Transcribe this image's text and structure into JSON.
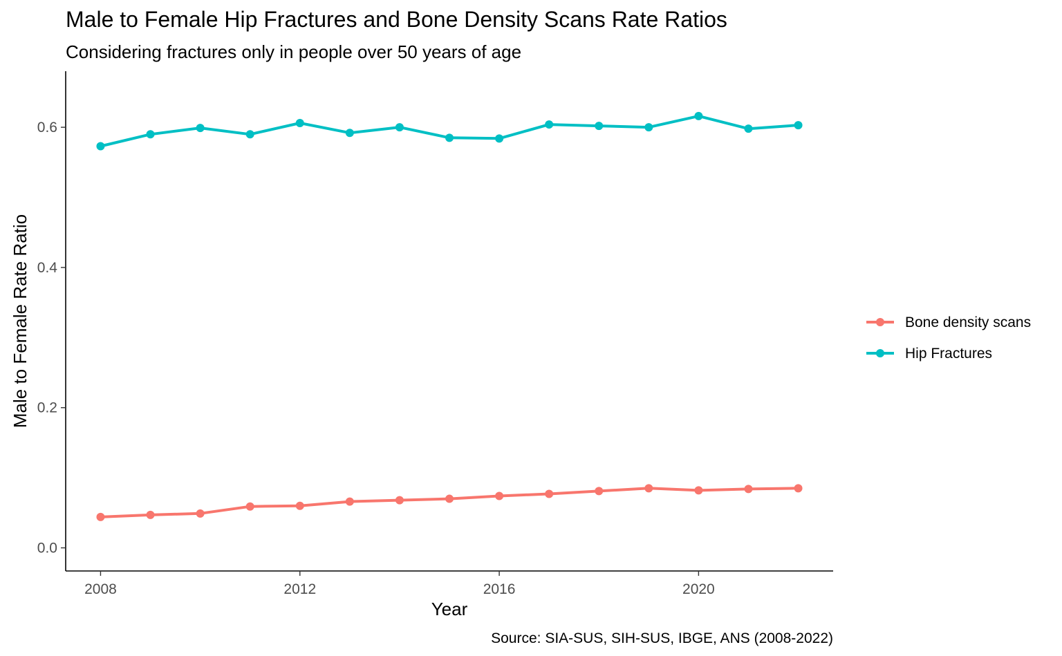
{
  "chart_data": {
    "type": "line",
    "title": "Male to Female Hip Fractures and Bone Density Scans Rate Ratios",
    "subtitle": "Considering fractures only in people over 50 years of age",
    "xlabel": "Year",
    "ylabel": "Male to Female Rate Ratio",
    "caption": "Source: SIA-SUS, SIH-SUS, IBGE, ANS (2008-2022)",
    "xlim": [
      2007.3,
      2022.7
    ],
    "ylim": [
      -0.033,
      0.68
    ],
    "x_ticks": [
      2008,
      2012,
      2016,
      2020
    ],
    "x_tick_labels": [
      "2008",
      "2012",
      "2016",
      "2020"
    ],
    "y_ticks": [
      0.0,
      0.2,
      0.4,
      0.6
    ],
    "y_tick_labels": [
      "0.0",
      "0.2",
      "0.4",
      "0.6"
    ],
    "grid": false,
    "legend_position": "right",
    "x": [
      2008,
      2009,
      2010,
      2011,
      2012,
      2013,
      2014,
      2015,
      2016,
      2017,
      2018,
      2019,
      2020,
      2021,
      2022
    ],
    "series": [
      {
        "name": "Bone density scans",
        "color": "#F8766D",
        "values": [
          0.044,
          0.047,
          0.049,
          0.059,
          0.06,
          0.066,
          0.068,
          0.07,
          0.074,
          0.077,
          0.081,
          0.085,
          0.082,
          0.084,
          0.085
        ]
      },
      {
        "name": "Hip Fractures",
        "color": "#00BFC4",
        "values": [
          0.573,
          0.59,
          0.599,
          0.59,
          0.606,
          0.592,
          0.6,
          0.585,
          0.584,
          0.604,
          0.602,
          0.6,
          0.616,
          0.598,
          0.603
        ]
      }
    ]
  }
}
